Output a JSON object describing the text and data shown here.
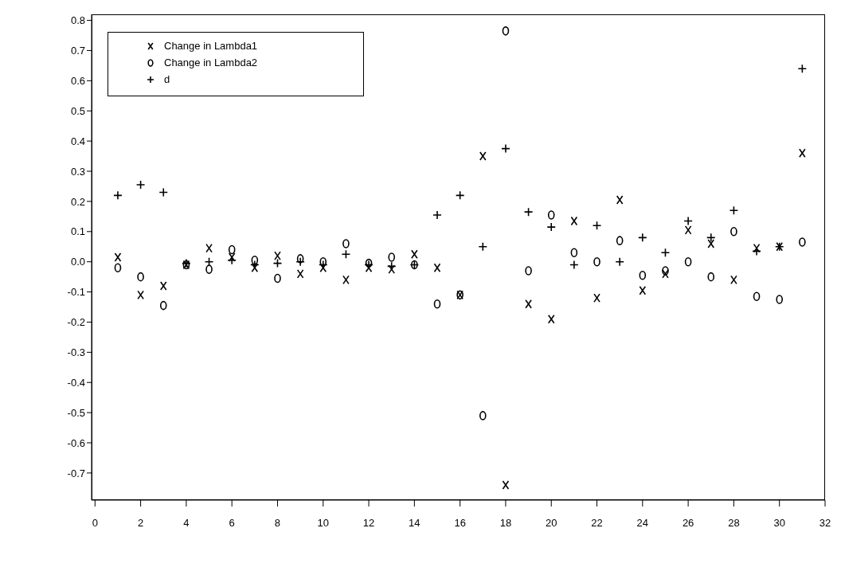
{
  "chart_data": {
    "type": "scatter",
    "x": [
      1,
      2,
      3,
      4,
      5,
      6,
      7,
      8,
      9,
      10,
      11,
      12,
      13,
      14,
      15,
      16,
      17,
      18,
      19,
      20,
      21,
      22,
      23,
      24,
      25,
      26,
      27,
      28,
      29,
      30,
      31
    ],
    "series": [
      {
        "name": "Change in Lambda1",
        "color": "#000000",
        "marker": "cross",
        "values": [
          0.015,
          -0.11,
          -0.08,
          -0.01,
          0.045,
          0.015,
          -0.02,
          0.02,
          -0.04,
          -0.02,
          -0.06,
          -0.02,
          -0.025,
          0.025,
          -0.02,
          -0.11,
          0.35,
          -0.74,
          -0.14,
          -0.19,
          0.135,
          -0.12,
          0.205,
          -0.095,
          -0.04,
          0.105,
          0.06,
          -0.06,
          0.045,
          0.05,
          0.36
        ]
      },
      {
        "name": "Change in Lambda2",
        "color": "#000000",
        "marker": "circle",
        "values": [
          -0.02,
          -0.05,
          -0.145,
          -0.01,
          -0.025,
          0.04,
          0.005,
          -0.055,
          0.01,
          0,
          0.06,
          -0.005,
          0.015,
          -0.01,
          -0.14,
          -0.11,
          -0.51,
          0.765,
          -0.03,
          0.155,
          0.03,
          0,
          0.07,
          -0.045,
          -0.03,
          0,
          -0.05,
          0.1,
          -0.115,
          -0.125,
          0.065
        ]
      },
      {
        "name": "d",
        "color": "#000000",
        "marker": "plus",
        "values": [
          0.22,
          0.255,
          0.23,
          -0.005,
          0,
          0.005,
          -0.01,
          -0.005,
          0,
          -0.01,
          0.025,
          -0.01,
          -0.015,
          -0.01,
          0.155,
          0.22,
          0.05,
          0.375,
          0.165,
          0.115,
          -0.01,
          0.12,
          0,
          0.08,
          0.03,
          0.135,
          0.08,
          0.17,
          0.035,
          0.05,
          0.64
        ]
      }
    ],
    "xlim": [
      -0.15,
      32
    ],
    "xticks": [
      0,
      2,
      4,
      6,
      8,
      10,
      12,
      14,
      16,
      18,
      20,
      22,
      24,
      26,
      28,
      30,
      32
    ],
    "ylim": [
      -0.79,
      0.82
    ],
    "yticks": [
      -0.7,
      -0.6,
      -0.5,
      -0.4,
      -0.3,
      -0.2,
      -0.1,
      {
        "value": 0,
        "label": "0.0"
      },
      0.1,
      0.2,
      0.3,
      0.4,
      0.5,
      0.6,
      0.7,
      0.8
    ],
    "grid": false,
    "legend": "top left"
  }
}
